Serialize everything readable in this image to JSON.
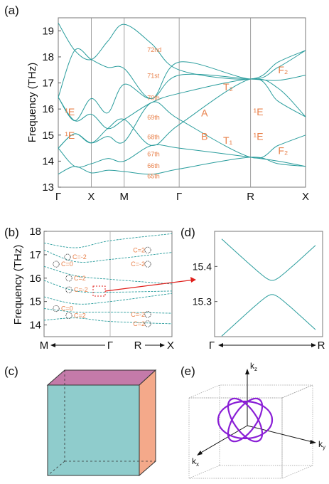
{
  "panels": {
    "a": "(a)",
    "b": "(b)",
    "c": "(c)",
    "d": "(d)",
    "e": "(e)"
  },
  "colors": {
    "band": "#2a9d9d",
    "label": "#e8804a",
    "arrow": "#e0201c",
    "loop": "#8a1fd6",
    "cube_front": "#8fcccc",
    "cube_top": "#c47aa9",
    "cube_side": "#f4a98a"
  },
  "chart_data": [
    {
      "id": "a",
      "type": "line",
      "ylabel": "Frequency (THz)",
      "ylim": [
        13,
        19.5
      ],
      "yticks": [
        "13",
        "14",
        "15",
        "16",
        "17",
        "18",
        "19"
      ],
      "xticks": [
        "Γ",
        "X",
        "M",
        "Γ",
        "R",
        "X"
      ],
      "band_labels": [
        "72nd",
        "71st",
        "70th",
        "69th",
        "68th",
        "67th",
        "66th",
        "65th"
      ],
      "irreps": [
        {
          "text": "¹E",
          "k": 0.12,
          "f": 15.9
        },
        {
          "text": "¹E",
          "k": 0.12,
          "f": 15.0
        },
        {
          "text": "A",
          "k": 2.6,
          "f": 15.85
        },
        {
          "text": "B",
          "k": 2.6,
          "f": 14.95
        },
        {
          "text": "T₁",
          "k": 3.0,
          "f": 14.8
        },
        {
          "text": "T₂",
          "k": 3.0,
          "f": 16.85
        },
        {
          "text": "¹E",
          "k": 3.55,
          "f": 15.9
        },
        {
          "text": "¹E",
          "k": 3.55,
          "f": 14.95
        },
        {
          "text": "F₂",
          "k": 4.0,
          "f": 17.5
        },
        {
          "text": "F₂",
          "k": 4.0,
          "f": 14.4
        }
      ],
      "bands": [
        [
          13.5,
          13.8,
          13.55,
          13.65,
          13.6,
          13.5,
          13.7,
          14.15,
          13.9,
          13.8
        ],
        [
          14.5,
          13.8,
          13.9,
          14.1,
          14.0,
          14.6,
          14.5,
          14.15,
          14.0,
          13.8
        ],
        [
          14.5,
          15.05,
          14.7,
          14.95,
          14.75,
          16.25,
          15.6,
          14.15,
          14.6,
          15.0
        ],
        [
          14.5,
          15.05,
          14.7,
          15.25,
          15.6,
          14.6,
          15.4,
          17.15,
          16.3,
          15.7
        ],
        [
          16.45,
          15.55,
          15.8,
          15.25,
          15.6,
          16.25,
          16.6,
          17.15,
          16.8,
          15.7
        ],
        [
          16.45,
          15.55,
          16.4,
          15.85,
          16.95,
          16.4,
          17.3,
          17.15,
          17.1,
          17.3
        ],
        [
          16.45,
          18.25,
          17.9,
          17.6,
          17.55,
          16.4,
          17.8,
          17.15,
          17.6,
          18.25
        ],
        [
          19.3,
          18.25,
          17.9,
          18.6,
          19.25,
          18.5,
          17.5,
          17.15,
          17.8,
          18.25
        ]
      ]
    },
    {
      "id": "b",
      "type": "line",
      "ylabel": "Frequency (THz)",
      "ylim": [
        13.5,
        18
      ],
      "yticks": [
        "14",
        "15",
        "16",
        "17",
        "18"
      ],
      "xaxis_left": "M",
      "xaxis_mid": "Γ",
      "xaxis_right1": "R",
      "xaxis_right2": "X",
      "chern_left": [
        "C=-2",
        "C=0",
        "C=2",
        "C=-2",
        "C=0",
        "C=2"
      ],
      "chern_right": [
        "C=2",
        "C=-2",
        "C=-2",
        "C=2"
      ]
    },
    {
      "id": "d",
      "type": "line",
      "ylim": [
        15.2,
        15.5
      ],
      "yticks": [
        "15.4",
        "15.3"
      ],
      "xaxis_left": "Γ",
      "xaxis_right": "R",
      "upper_branch_min": 15.36,
      "lower_branch_max": 15.32
    }
  ],
  "panel_e": {
    "axes": {
      "kz": "k",
      "kz_sub": "z",
      "ky": "k",
      "ky_sub": "y",
      "kx": "k",
      "kx_sub": "x"
    }
  }
}
